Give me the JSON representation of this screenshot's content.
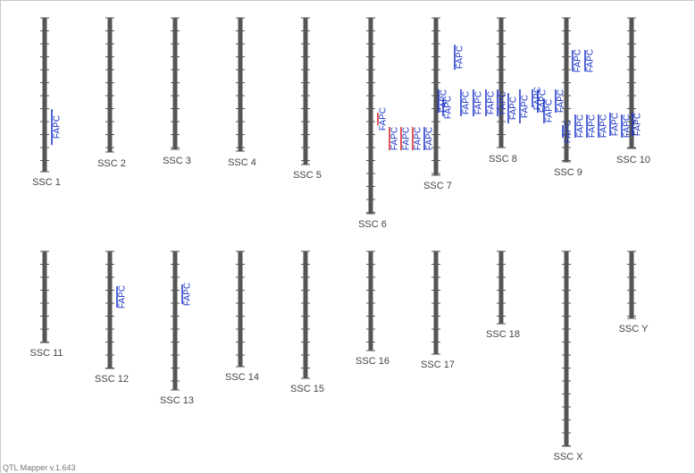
{
  "chromosomes": [
    {
      "label": "SSC 1"
    },
    {
      "label": "SSC 2"
    },
    {
      "label": "SSC 3"
    },
    {
      "label": "SSC 4"
    },
    {
      "label": "SSC 5"
    },
    {
      "label": "SSC 6"
    },
    {
      "label": "SSC 7"
    },
    {
      "label": "SSC 8"
    },
    {
      "label": "SSC 9"
    },
    {
      "label": "SSC 10"
    },
    {
      "label": "SSC 11"
    },
    {
      "label": "SSC 12"
    },
    {
      "label": "SSC 13"
    },
    {
      "label": "SSC 14"
    },
    {
      "label": "SSC 15"
    },
    {
      "label": "SSC 16"
    },
    {
      "label": "SSC 17"
    },
    {
      "label": "SSC 18"
    },
    {
      "label": "SSC X"
    },
    {
      "label": "SSC Y"
    }
  ],
  "qtls": [
    {
      "label": "FAPC"
    },
    {
      "label": "FAPC"
    },
    {
      "label": "FAPC"
    },
    {
      "label": "FAPC"
    },
    {
      "label": "FAPC"
    },
    {
      "label": "FAPC"
    },
    {
      "label": "FAPC"
    },
    {
      "label": "FAPC"
    },
    {
      "label": "FAPC"
    },
    {
      "label": "FAPC"
    },
    {
      "label": "FAPC"
    },
    {
      "label": "FAPC"
    },
    {
      "label": "FAPC"
    },
    {
      "label": "FAPC"
    },
    {
      "label": "FAPC"
    },
    {
      "label": "FAPC"
    },
    {
      "label": "FAPC"
    },
    {
      "label": "FAPC"
    },
    {
      "label": "FAPC"
    },
    {
      "label": "FAPC"
    },
    {
      "label": "FAPC"
    },
    {
      "label": "FAPC"
    },
    {
      "label": "FAPC"
    },
    {
      "label": "FAPC"
    },
    {
      "label": "FAPC"
    },
    {
      "label": "FAPC"
    },
    {
      "label": "FAPC"
    },
    {
      "label": "FAPC"
    },
    {
      "label": "FAPC"
    },
    {
      "label": "FAPC"
    }
  ],
  "footer": "QTL Mapper v.1.643"
}
